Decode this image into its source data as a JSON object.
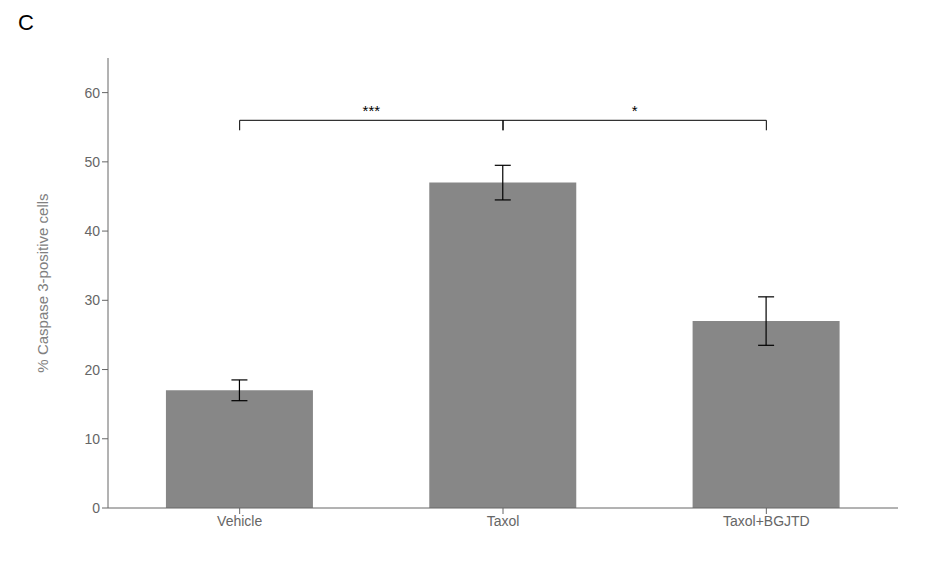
{
  "chart_data": {
    "type": "bar",
    "title": "C",
    "categories": [
      "Vehicle",
      "Taxol",
      "Taxol+BGJTD"
    ],
    "values": [
      17.0,
      47.0,
      27.0
    ],
    "errors": [
      1.5,
      2.5,
      3.5
    ],
    "color": "#878787",
    "ylim": [
      0,
      65
    ],
    "yticks": [
      0,
      10,
      20,
      30,
      40,
      50,
      60
    ],
    "ylabel": "% Caspase 3-positive cells",
    "grid": false,
    "annotations": [
      {
        "label": "***",
        "x1": "Vehicle",
        "x2": "Taxol",
        "y": 56
      },
      {
        "label": "*",
        "x1": "Taxol",
        "x2": "Taxol+BGJTD",
        "y": 56
      }
    ]
  }
}
